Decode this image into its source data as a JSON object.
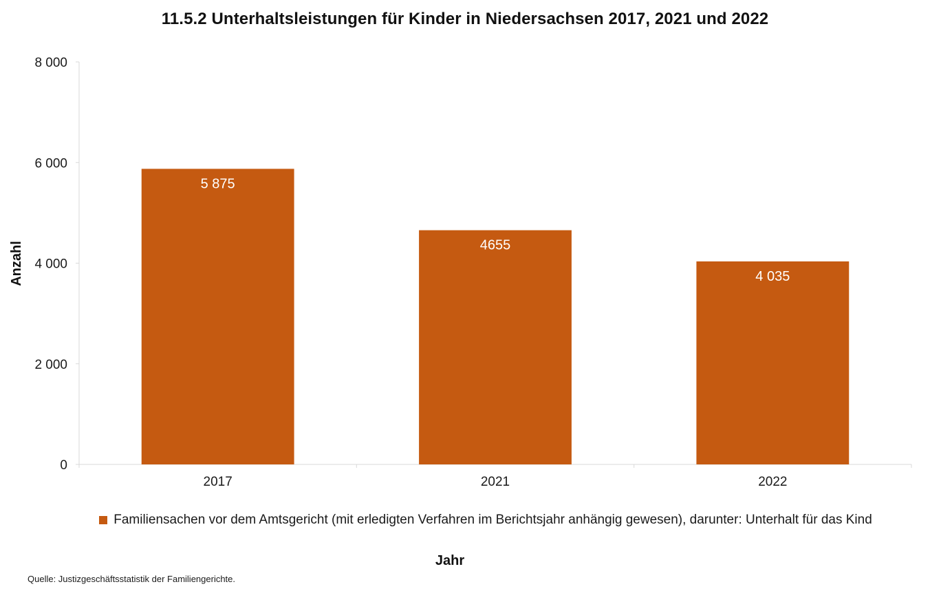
{
  "chart_data": {
    "type": "bar",
    "title": "11.5.2 Unterhaltsleistungen für Kinder in Niedersachsen 2017, 2021 und 2022",
    "categories": [
      "2017",
      "2021",
      "2022"
    ],
    "series": [
      {
        "name": "Familiensachen vor dem Amtsgericht (mit erledigten Verfahren im Berichtsjahr anhängig gewesen), darunter: Unterhalt für das Kind",
        "values": [
          5875,
          4655,
          4035
        ],
        "labels": [
          "5 875",
          "4655",
          "4 035"
        ],
        "color": "#c55a11"
      }
    ],
    "xlabel": "Jahr",
    "ylabel": "Anzahl",
    "ylim": [
      0,
      8000
    ],
    "yticks": [
      0,
      2000,
      4000,
      6000,
      8000
    ],
    "ytick_labels": [
      "0",
      "2 000",
      "4 000",
      "6 000",
      "8 000"
    ],
    "grid": false,
    "legend_position": "bottom"
  },
  "source": "Quelle: Justizgeschäftsstatistik der Familiengerichte."
}
